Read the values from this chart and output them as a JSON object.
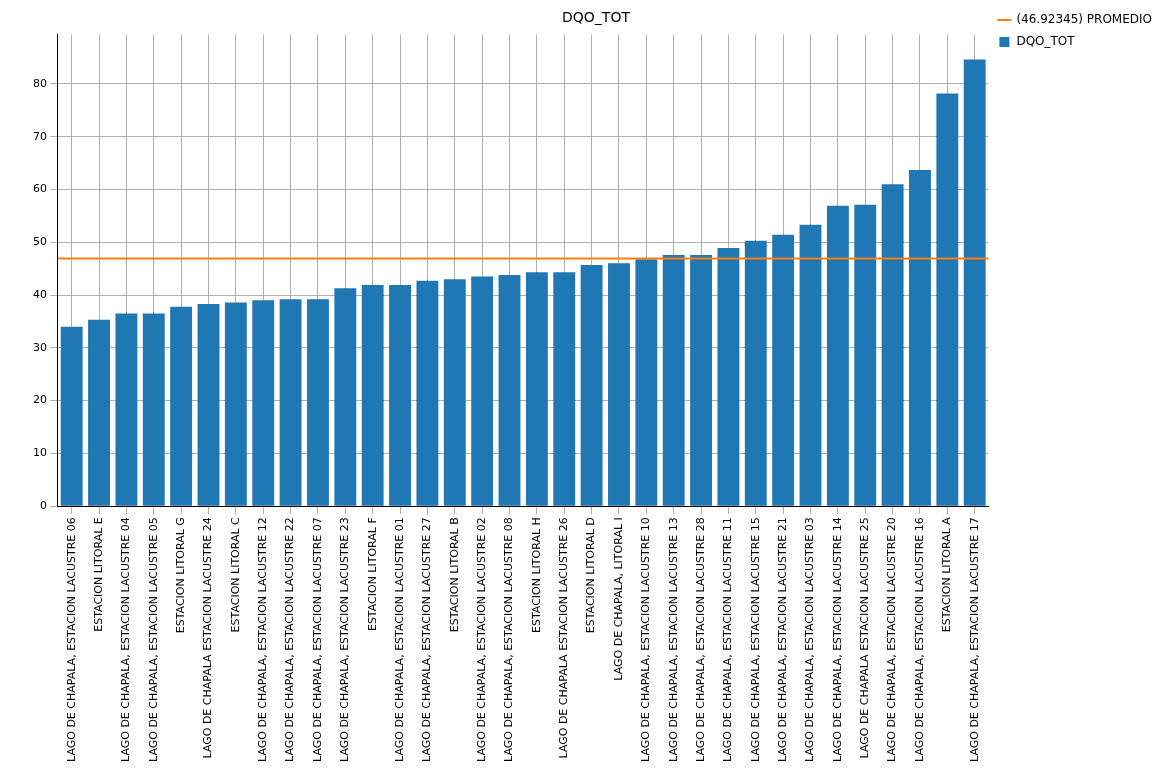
{
  "chart_data": {
    "type": "bar",
    "title": "DQO_TOT",
    "categories": [
      "LAGO DE CHAPALA, ESTACION LACUSTRE 06",
      "ESTACION LITORAL E",
      "LAGO DE CHAPALA, ESTACION LACUSTRE 04",
      "LAGO DE CHAPALA, ESTACION LACUSTRE 05",
      "ESTACION LITORAL G",
      "LAGO DE CHAPALA ESTACION LACUSTRE 24",
      "ESTACION LITORAL C",
      "LAGO DE CHAPALA, ESTACION LACUSTRE 12",
      "LAGO DE CHAPALA, ESTACION LACUSTRE 22",
      "LAGO DE CHAPALA, ESTACION LACUSTRE 07",
      "LAGO DE CHAPALA, ESTACION LACUSTRE 23",
      "ESTACION LITORAL F",
      "LAGO DE CHAPALA, ESTACION LACUSTRE 01",
      "LAGO DE CHAPALA, ESTACION LACUSTRE 27",
      "ESTACION LITORAL B",
      "LAGO DE CHAPALA, ESTACION LACUSTRE 02",
      "LAGO DE CHAPALA, ESTACION LACUSTRE 08",
      "ESTACION LITORAL H",
      "LAGO DE CHAPALA ESTACION LACUSTRE 26",
      "ESTACION LITORAL D",
      "LAGO DE CHAPALA, LITORAL I",
      "LAGO DE CHAPALA, ESTACION LACUSTRE 10",
      "LAGO DE CHAPALA, ESTACION LACUSTRE 13",
      "LAGO DE CHAPALA, ESTACION LACUSTRE 28",
      "LAGO DE CHAPALA, ESTACION LACUSTRE 11",
      "LAGO DE CHAPALA, ESTACION LACUSTRE 15",
      "LAGO DE CHAPALA, ESTACION LACUSTRE 21",
      "LAGO DE CHAPALA, ESTACION LACUSTRE 03",
      "LAGO DE CHAPALA, ESTACION LACUSTRE 14",
      "LAGO DE CHAPALA ESTACION LACUSTRE 25",
      "LAGO DE CHAPALA, ESTACION LACUSTRE 20",
      "LAGO DE CHAPALA, ESTACION LACUSTRE 16",
      "ESTACION LITORAL A",
      "LAGO DE CHAPALA, ESTACION LACUSTRE 17"
    ],
    "series": [
      {
        "name": "DQO_TOT",
        "color": "#1f77b4",
        "values": [
          34,
          35.3,
          36.5,
          36.5,
          37.8,
          38.3,
          38.6,
          39,
          39.2,
          39.2,
          41.3,
          41.9,
          41.9,
          42.7,
          43,
          43.5,
          43.8,
          44.3,
          44.3,
          45.7,
          46,
          46.8,
          47.6,
          47.6,
          48.9,
          50.3,
          51.4,
          53.3,
          56.9,
          57.1,
          61,
          63.7,
          78.2,
          84.6
        ]
      }
    ],
    "ref_lines": [
      {
        "axis": "y",
        "value": 46.92345,
        "label": "(46.92345) PROMEDIO",
        "color": "#ff7f0e"
      }
    ],
    "ylim": [
      0,
      89.3
    ],
    "yticks": [
      0,
      10,
      20,
      30,
      40,
      50,
      60,
      70,
      80
    ],
    "grid": true,
    "legend": "top right"
  }
}
